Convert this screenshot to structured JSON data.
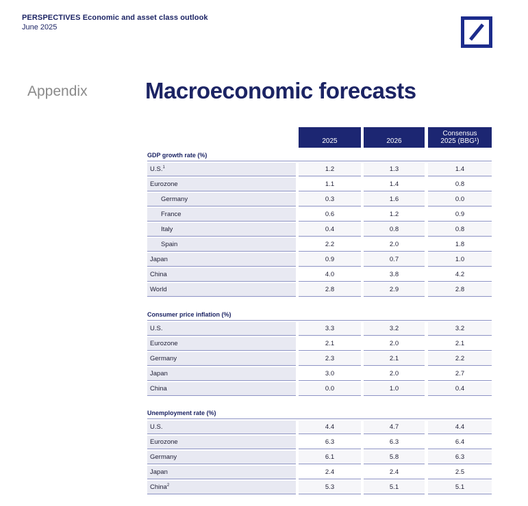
{
  "header": {
    "brand": "PERSPECTIVES",
    "subtitle": "Economic and asset class outlook",
    "date": "June 2025",
    "logo": "deutsche-bank-slash-logo"
  },
  "appendix_label": "Appendix",
  "title": "Macroeconomic forecasts",
  "columns": [
    "2025",
    "2026",
    "Consensus",
    "2025 (BBG¹)"
  ],
  "sections": [
    {
      "title": "GDP growth rate (%)",
      "rows": [
        {
          "label": "U.S.",
          "note": "1",
          "v": [
            "1.2",
            "1.3",
            "1.4"
          ]
        },
        {
          "label": "Eurozone",
          "note": "",
          "v": [
            "1.1",
            "1.4",
            "0.8"
          ]
        },
        {
          "label": "Germany",
          "note": "",
          "v": [
            "0.3",
            "1.6",
            "0.0"
          ]
        },
        {
          "label": "France",
          "note": "",
          "v": [
            "0.6",
            "1.2",
            "0.9"
          ]
        },
        {
          "label": "Italy",
          "note": "",
          "v": [
            "0.4",
            "0.8",
            "0.8"
          ]
        },
        {
          "label": "Spain",
          "note": "",
          "v": [
            "2.2",
            "2.0",
            "1.8"
          ]
        },
        {
          "label": "Japan",
          "note": "",
          "v": [
            "0.9",
            "0.7",
            "1.0"
          ]
        },
        {
          "label": "China",
          "note": "",
          "v": [
            "4.0",
            "3.8",
            "4.2"
          ]
        },
        {
          "label": "World",
          "note": "",
          "v": [
            "2.8",
            "2.9",
            "2.8"
          ]
        }
      ]
    },
    {
      "title": "Consumer price inflation (%)",
      "rows": [
        {
          "label": "U.S.",
          "note": "",
          "v": [
            "3.3",
            "3.2",
            "3.2"
          ]
        },
        {
          "label": "Eurozone",
          "note": "",
          "v": [
            "2.1",
            "2.0",
            "2.1"
          ]
        },
        {
          "label": "Germany",
          "note": "",
          "v": [
            "2.3",
            "2.1",
            "2.2"
          ]
        },
        {
          "label": "Japan",
          "note": "",
          "v": [
            "3.0",
            "2.0",
            "2.7"
          ]
        },
        {
          "label": "China",
          "note": "",
          "v": [
            "0.0",
            "1.0",
            "0.4"
          ]
        }
      ]
    },
    {
      "title": "Unemployment rate (%)",
      "rows": [
        {
          "label": "U.S.",
          "note": "",
          "v": [
            "4.4",
            "4.7",
            "4.4"
          ]
        },
        {
          "label": "Eurozone",
          "note": "",
          "v": [
            "6.3",
            "6.3",
            "6.4"
          ]
        },
        {
          "label": "Germany",
          "note": "",
          "v": [
            "6.1",
            "5.8",
            "6.3"
          ]
        },
        {
          "label": "Japan",
          "note": "",
          "v": [
            "2.4",
            "2.4",
            "2.5"
          ]
        },
        {
          "label": "China",
          "note": "2",
          "v": [
            "5.3",
            "5.1",
            "5.1"
          ]
        }
      ]
    }
  ]
}
